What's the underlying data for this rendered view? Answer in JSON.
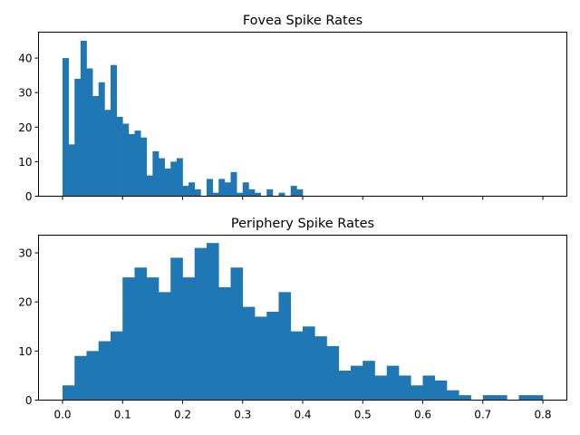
{
  "chart_data": [
    {
      "type": "bar",
      "title": "Fovea Spike Rates",
      "xlabel": "",
      "ylabel": "",
      "color": "#1f77b4",
      "bin_width": 0.01,
      "x": [
        0.0,
        0.01,
        0.02,
        0.03,
        0.04,
        0.05,
        0.06,
        0.07,
        0.08,
        0.09,
        0.1,
        0.11,
        0.12,
        0.13,
        0.14,
        0.15,
        0.16,
        0.17,
        0.18,
        0.19,
        0.2,
        0.21,
        0.22,
        0.23,
        0.24,
        0.25,
        0.26,
        0.27,
        0.28,
        0.29,
        0.3,
        0.31,
        0.32,
        0.33,
        0.34,
        0.35,
        0.36,
        0.37,
        0.38,
        0.39,
        0.4,
        0.41,
        0.42,
        0.43,
        0.44,
        0.45,
        0.46,
        0.47,
        0.48,
        0.49
      ],
      "values": [
        40,
        15,
        34,
        45,
        37,
        29,
        33,
        25,
        38,
        23,
        21,
        18,
        19,
        17,
        6,
        13,
        11,
        8,
        10,
        11,
        3,
        4,
        2,
        0,
        5,
        1,
        5,
        4,
        7,
        1,
        4,
        2,
        1,
        0,
        2,
        0,
        1,
        0,
        3,
        2,
        0,
        0,
        0,
        0,
        0,
        0,
        0,
        0,
        0,
        0
      ],
      "xlim": [
        -0.04,
        0.84
      ],
      "ylim": [
        0,
        47.5
      ],
      "xticks": [
        0.0,
        0.1,
        0.2,
        0.3,
        0.4,
        0.5,
        0.6,
        0.7,
        0.8
      ],
      "xtick_labels_visible": false,
      "yticks": [
        0,
        10,
        20,
        30,
        40
      ],
      "ytick_labels": [
        "0",
        "10",
        "20",
        "30",
        "40"
      ],
      "grid": false
    },
    {
      "type": "bar",
      "title": "Periphery Spike Rates",
      "xlabel": "",
      "ylabel": "",
      "color": "#1f77b4",
      "bin_width": 0.02,
      "x": [
        0.0,
        0.02,
        0.04,
        0.06,
        0.08,
        0.1,
        0.12,
        0.14,
        0.16,
        0.18,
        0.2,
        0.22,
        0.24,
        0.26,
        0.28,
        0.3,
        0.32,
        0.34,
        0.36,
        0.38,
        0.4,
        0.42,
        0.44,
        0.46,
        0.48,
        0.5,
        0.52,
        0.54,
        0.56,
        0.58,
        0.6,
        0.62,
        0.64,
        0.66,
        0.68,
        0.7,
        0.72,
        0.74,
        0.76,
        0.78
      ],
      "values": [
        3,
        9,
        10,
        12,
        14,
        25,
        27,
        25,
        22,
        29,
        25,
        31,
        32,
        23,
        27,
        19,
        17,
        18,
        22,
        14,
        15,
        13,
        11,
        6,
        7,
        8,
        5,
        7,
        5,
        3,
        5,
        4,
        2,
        1,
        0,
        1,
        1,
        0,
        1,
        1
      ],
      "xlim": [
        -0.04,
        0.84
      ],
      "ylim": [
        0,
        33.6
      ],
      "xticks": [
        0.0,
        0.1,
        0.2,
        0.3,
        0.4,
        0.5,
        0.6,
        0.7,
        0.8
      ],
      "xtick_labels": [
        "0.0",
        "0.1",
        "0.2",
        "0.3",
        "0.4",
        "0.5",
        "0.6",
        "0.7",
        "0.8"
      ],
      "yticks": [
        0,
        10,
        20,
        30
      ],
      "ytick_labels": [
        "0",
        "10",
        "20",
        "30"
      ],
      "grid": false
    }
  ]
}
